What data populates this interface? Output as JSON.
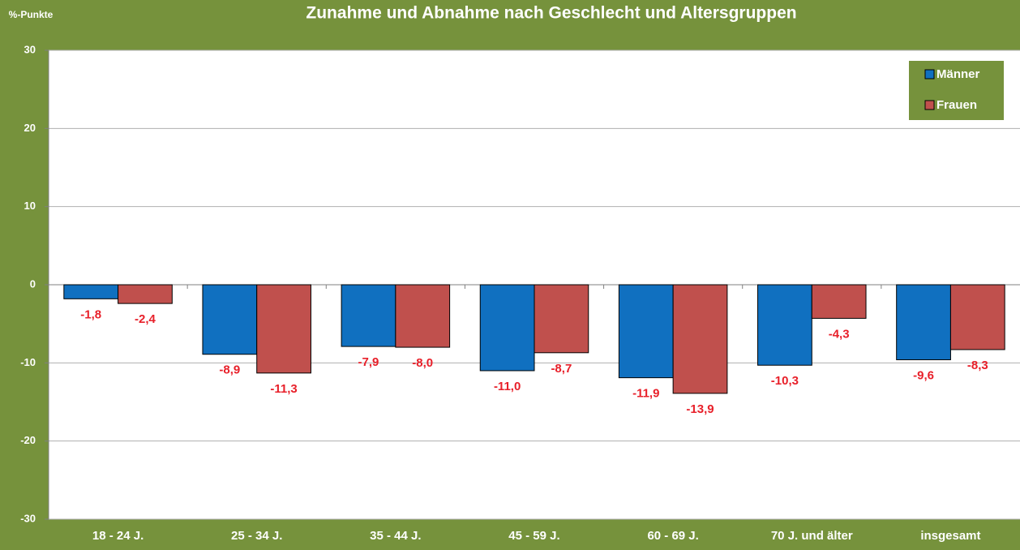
{
  "chart_data": {
    "type": "bar",
    "title": "Zunahme und Abnahme nach Geschlecht und Altersgruppen",
    "y_label": "%-Punkte",
    "categories": [
      "18 - 24 J.",
      "25 - 34 J.",
      "35 - 44 J.",
      "45 - 59 J.",
      "60 - 69 J.",
      "70 J. und älter",
      "insgesamt"
    ],
    "series": [
      {
        "name": "Männer",
        "color": "#1070c0",
        "values": [
          -1.8,
          -8.9,
          -7.9,
          -11.0,
          -11.9,
          -10.3,
          -9.6
        ],
        "value_labels": [
          "-1,8",
          "-8,9",
          "-7,9",
          "-11,0",
          "-11,9",
          "-10,3",
          "-9,6"
        ]
      },
      {
        "name": "Frauen",
        "color": "#c0504d",
        "values": [
          -2.4,
          -11.3,
          -8.0,
          -8.7,
          -13.9,
          -4.3,
          -8.3
        ],
        "value_labels": [
          "-2,4",
          "-11,3",
          "-8,0",
          "-8,7",
          "-13,9",
          "-4,3",
          "-8,3"
        ]
      }
    ],
    "ylim": [
      -30,
      30
    ],
    "yticks": [
      -30,
      -20,
      -10,
      0,
      10,
      20,
      30
    ],
    "grid": true,
    "legend": "top-right"
  }
}
